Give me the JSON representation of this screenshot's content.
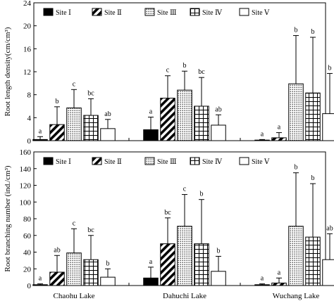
{
  "chart_data": [
    {
      "type": "bar",
      "ylabel": "Root length density(cm/cm³)",
      "ylim": [
        0,
        24
      ],
      "yticks": [
        0,
        4,
        8,
        12,
        16,
        20,
        24
      ],
      "grid": false,
      "legend_position": "top",
      "categories": [
        "Chaohu Lake",
        "Dahuchi Lake",
        "Wuchang Lake"
      ],
      "show_category_labels": false,
      "series": [
        {
          "name": "Site Ⅰ",
          "pattern": "solid-black",
          "values": [
            0.2,
            1.9,
            0.1
          ],
          "errors": [
            0.5,
            2.2,
            0.1
          ],
          "labels": [
            "a",
            "a",
            "a"
          ]
        },
        {
          "name": "Site Ⅱ",
          "pattern": "diagonal-stripes",
          "values": [
            2.8,
            7.4,
            0.5
          ],
          "errors": [
            3.1,
            3.9,
            0.9
          ],
          "labels": [
            "b",
            "c",
            "a"
          ]
        },
        {
          "name": "Site Ⅲ",
          "pattern": "dots",
          "values": [
            5.7,
            8.8,
            9.9
          ],
          "errors": [
            3.2,
            3.3,
            8.4
          ],
          "labels": [
            "c",
            "b",
            "b"
          ]
        },
        {
          "name": "Site Ⅳ",
          "pattern": "grid",
          "values": [
            4.4,
            6.0,
            8.3
          ],
          "errors": [
            2.9,
            5.0,
            9.7
          ],
          "labels": [
            "bc",
            "bc",
            "b"
          ]
        },
        {
          "name": "Site Ⅴ",
          "pattern": "open",
          "values": [
            2.1,
            2.7,
            4.7
          ],
          "errors": [
            1.6,
            1.8,
            7.0
          ],
          "labels": [
            "ab",
            "ab",
            "b"
          ]
        }
      ]
    },
    {
      "type": "bar",
      "ylabel": "Root branching number (ind./cm³)",
      "ylim": [
        0,
        160
      ],
      "yticks": [
        0,
        20,
        40,
        60,
        80,
        100,
        120,
        140,
        160
      ],
      "grid": false,
      "legend_position": "top",
      "categories": [
        "Chaohu Lake",
        "Dahuchi Lake",
        "Wuchang Lake"
      ],
      "show_category_labels": true,
      "series": [
        {
          "name": "Site Ⅰ",
          "pattern": "solid-black",
          "values": [
            1,
            9,
            1
          ],
          "errors": [
            1,
            13,
            1
          ],
          "labels": [
            "a",
            "a",
            "a"
          ]
        },
        {
          "name": "Site Ⅱ",
          "pattern": "diagonal-stripes",
          "values": [
            16,
            50,
            3
          ],
          "errors": [
            20,
            31,
            6
          ],
          "labels": [
            "ab",
            "bc",
            "a"
          ]
        },
        {
          "name": "Site Ⅲ",
          "pattern": "dots",
          "values": [
            39,
            71,
            71
          ],
          "errors": [
            29,
            38,
            64
          ],
          "labels": [
            "c",
            "c",
            "b"
          ]
        },
        {
          "name": "Site Ⅳ",
          "pattern": "grid",
          "values": [
            31,
            50,
            58
          ],
          "errors": [
            29,
            53,
            64
          ],
          "labels": [
            "bc",
            "b",
            "b"
          ]
        },
        {
          "name": "Site Ⅴ",
          "pattern": "open",
          "values": [
            10,
            17,
            31
          ],
          "errors": [
            10,
            18,
            31
          ],
          "labels": [
            "b",
            "b",
            "ab"
          ]
        }
      ]
    }
  ]
}
